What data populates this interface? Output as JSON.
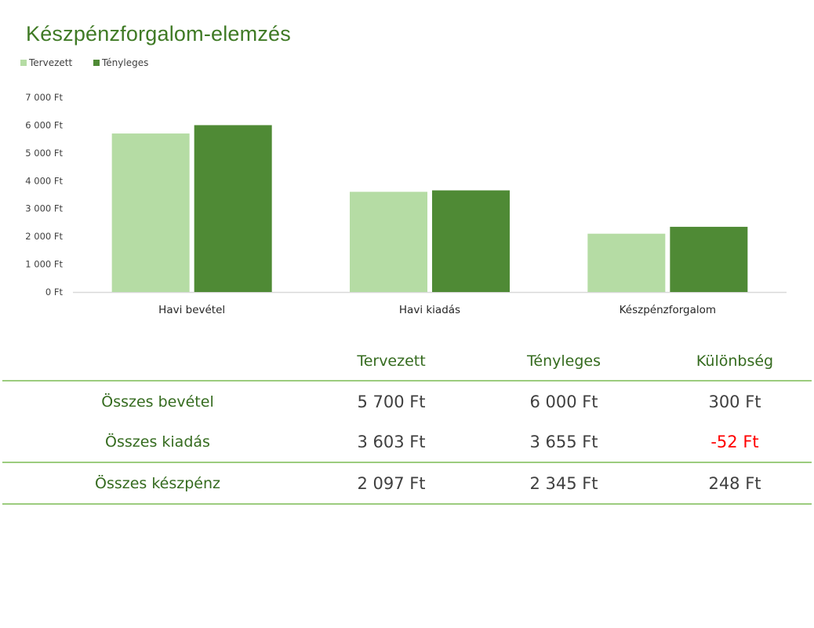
{
  "chart_data": {
    "type": "bar",
    "title": "Készpénzforgalom-elemzés",
    "categories": [
      "Havi bevétel",
      "Havi kiadás",
      "Készpénzforgalom"
    ],
    "series": [
      {
        "name": "Tervezett",
        "values": [
          5700,
          3603,
          2097
        ],
        "color": "#b5dca4"
      },
      {
        "name": "Tényleges",
        "values": [
          6000,
          3655,
          2345
        ],
        "color": "#4f8a35"
      }
    ],
    "ylim": [
      0,
      7000
    ],
    "y_ticks": [
      0,
      1000,
      2000,
      3000,
      4000,
      5000,
      6000,
      7000
    ],
    "y_tick_labels": [
      "0 Ft",
      "1 000 Ft",
      "2 000 Ft",
      "3 000 Ft",
      "4 000 Ft",
      "5 000 Ft",
      "6 000 Ft",
      "7 000 Ft"
    ],
    "xlabel": "",
    "ylabel": "",
    "grid": false,
    "legend_position": "top-left"
  },
  "table": {
    "headers": [
      "",
      "Tervezett",
      "Tényleges",
      "Különbség"
    ],
    "rows": [
      {
        "label": "Összes bevétel",
        "planned": "5 700 Ft",
        "actual": "6 000 Ft",
        "difference": "300 Ft",
        "negative": false
      },
      {
        "label": "Összes kiadás",
        "planned": "3 603 Ft",
        "actual": "3 655 Ft",
        "difference": "-52 Ft",
        "negative": true
      },
      {
        "label": "Összes készpénz",
        "planned": "2 097 Ft",
        "actual": "2 345 Ft",
        "difference": "248 Ft",
        "negative": false
      }
    ]
  },
  "colors": {
    "title": "#3f7a25",
    "axis": "#d9d9d9",
    "tick_text": "#404040",
    "table_text_green": "#356b1f",
    "table_rule": "#9ccc7e",
    "negative": "#ff0000"
  }
}
